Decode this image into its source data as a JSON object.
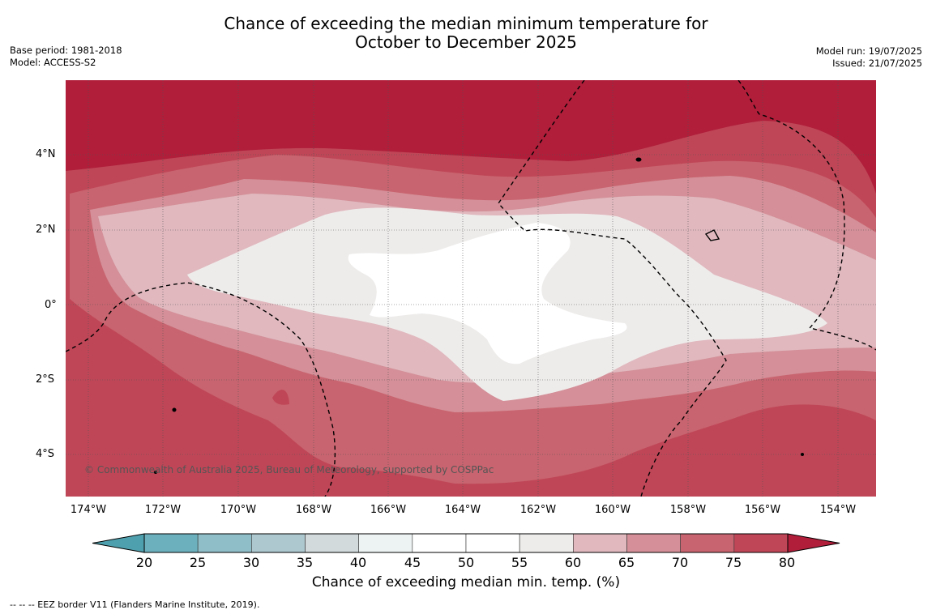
{
  "title": {
    "line1": "Chance of exceeding the median minimum temperature for",
    "line2": "October to December 2025"
  },
  "meta": {
    "base_period": "Base period: 1981-2018",
    "model": "Model: ACCESS-S2",
    "model_run": "Model run: 19/07/2025",
    "issued": "Issued: 21/07/2025"
  },
  "map": {
    "lat_labels": [
      "4°N",
      "2°N",
      "0°",
      "2°S",
      "4°S"
    ],
    "lon_labels": [
      "174°W",
      "172°W",
      "170°W",
      "168°W",
      "166°W",
      "164°W",
      "162°W",
      "160°W",
      "158°W",
      "156°W",
      "154°W"
    ],
    "copyright": "© Commonwealth of Australia 2025, Bureau of Meteorology, supported by COSPPac"
  },
  "legend": {
    "ticks": [
      "20",
      "25",
      "30",
      "35",
      "40",
      "45",
      "50",
      "55",
      "60",
      "65",
      "70",
      "75",
      "80"
    ],
    "colors": [
      "#4fa0ae",
      "#6cb0be",
      "#8fbec8",
      "#adc9cf",
      "#d2dadc",
      "#edf2f2",
      "#ffffff",
      "#ffffff",
      "#eeeceb",
      "#e0b8be",
      "#d48f98",
      "#c8646f",
      "#bf4657",
      "#b01e3a"
    ],
    "label": "Chance of exceeding median min. temp. (%)"
  },
  "eez_note": "--  --  -- EEZ border V11 (Flanders Marine Institute, 2019)."
}
